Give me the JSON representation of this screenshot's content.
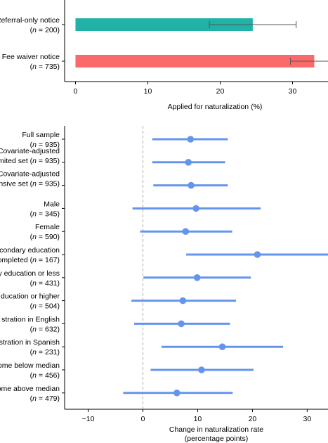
{
  "chart_data": [
    {
      "type": "bar",
      "orientation": "horizontal",
      "categories": [
        {
          "label": "Referral-only notice",
          "sublabel": "(n = 200)",
          "n": 200
        },
        {
          "label": "Fee waiver notice",
          "sublabel": "(n = 735)",
          "n": 735
        }
      ],
      "values": [
        24.5,
        33.0
      ],
      "error_low": [
        18.5,
        29.7
      ],
      "error_high": [
        30.5,
        36.5
      ],
      "colors": [
        "#20b2a6",
        "#fb6a6a"
      ],
      "xlabel": "Applied for naturalization (%)",
      "xlim": [
        -1.5,
        34.9
      ],
      "xticks": [
        0,
        10,
        20,
        30
      ],
      "grid": false
    },
    {
      "type": "scatter",
      "subtype": "coefficient-plot",
      "categories": [
        {
          "label": "Full sample",
          "sublabel": "(n = 935)",
          "n": 935
        },
        {
          "label": "Covariate-adjusted",
          "label2": "mited set",
          "sublabel": "(n = 935)",
          "label2_inline": true,
          "n": 935
        },
        {
          "label": "Covariate-adjusted",
          "label2": "nsive set",
          "sublabel": "(n = 935)",
          "label2_inline": true,
          "n": 935
        },
        {
          "label": "Male",
          "sublabel": "(n = 345)",
          "n": 345
        },
        {
          "label": "Female",
          "sublabel": "(n = 590)",
          "n": 590
        },
        {
          "label": "condary education",
          "sublabel": "ompleted (n = 167)",
          "n": 167
        },
        {
          "label": "y education or less",
          "sublabel": "(n = 431)",
          "n": 431
        },
        {
          "label": "ducation or higher",
          "sublabel": "(n = 504)",
          "n": 504
        },
        {
          "label": "stration in English",
          "sublabel": "(n = 632)",
          "n": 632
        },
        {
          "label": "stration in Spanish",
          "sublabel": "(n = 231)",
          "n": 231
        },
        {
          "label": "ome below median",
          "sublabel": "(n = 456)",
          "n": 456
        },
        {
          "label": "ome above median",
          "sublabel": "(n = 479)",
          "n": 479
        }
      ],
      "estimates": [
        8.7,
        8.3,
        8.8,
        9.7,
        7.8,
        20.9,
        9.9,
        7.3,
        7.0,
        14.5,
        10.7,
        6.2
      ],
      "ci_low": [
        1.7,
        1.7,
        1.9,
        -1.9,
        -0.5,
        7.9,
        0.1,
        -2.1,
        -1.6,
        3.4,
        1.4,
        -3.6
      ],
      "ci_high": [
        15.5,
        15.0,
        15.5,
        21.5,
        16.3,
        34.0,
        19.7,
        17.0,
        15.9,
        25.6,
        20.2,
        16.4
      ],
      "color": "#6495ed",
      "reference_line": 0,
      "xlabel": "Change in naturalization rate",
      "xlabel2": "(percentage points)",
      "xlim": [
        -14.3,
        33.8
      ],
      "xticks": [
        -10,
        0,
        10,
        20,
        30
      ],
      "grid": false
    }
  ]
}
